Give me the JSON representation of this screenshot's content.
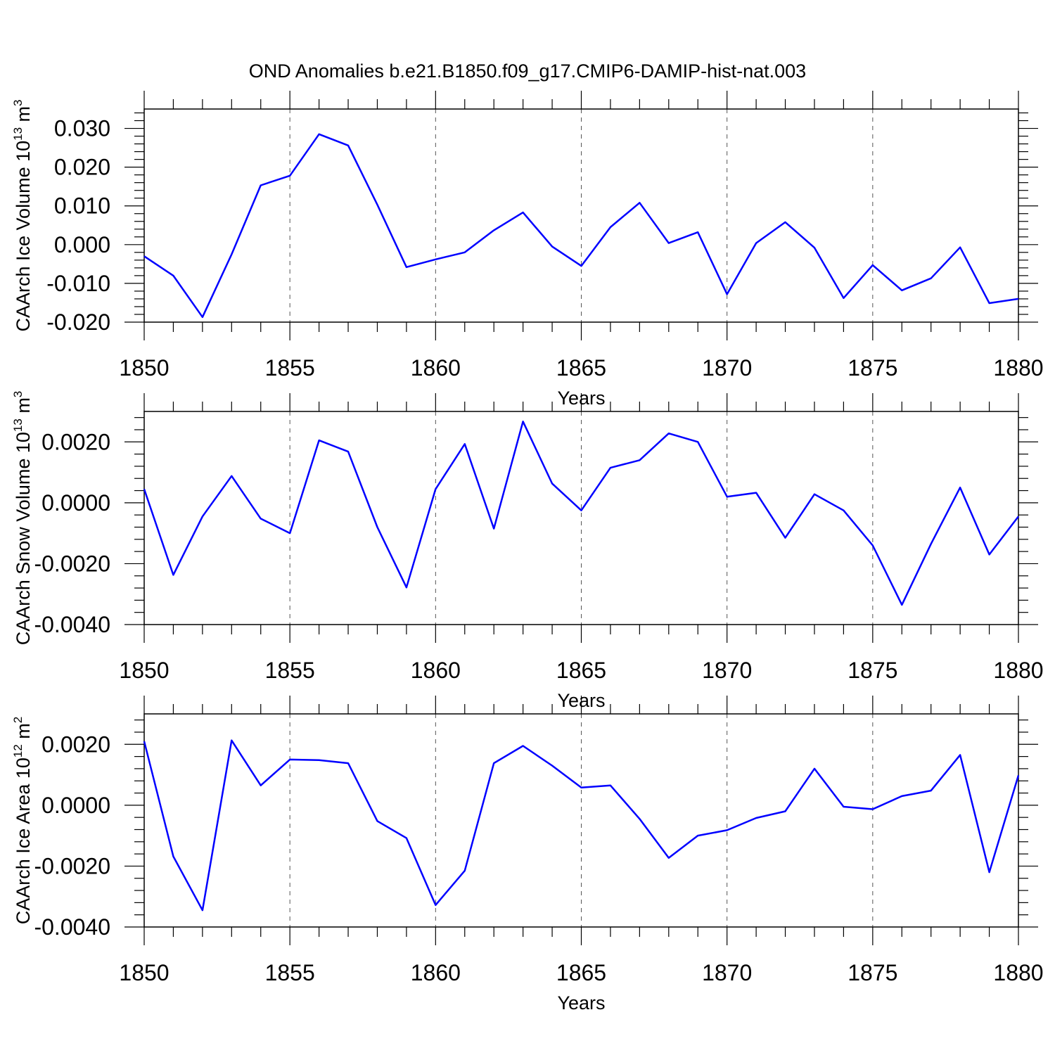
{
  "page": {
    "title": "OND Anomalies b.e21.B1850.f09_g17.CMIP6-DAMIP-hist-nat.003"
  },
  "colors": {
    "line": "#0000ff",
    "axis": "#000000",
    "grid": "#555555"
  },
  "chart_data": [
    {
      "type": "line",
      "title": "OND Anomalies b.e21.B1850.f09_g17.CMIP6-DAMIP-hist-nat.003",
      "xlabel": "Years",
      "ylabel": {
        "text": "CAArch Ice Volume 10",
        "sup": "13",
        "unit": " m",
        "unit_sup": "3"
      },
      "xlim": [
        1850,
        1880
      ],
      "ylim": [
        -0.02,
        0.035
      ],
      "x_ticks": [
        1850,
        1855,
        1860,
        1865,
        1870,
        1875,
        1880
      ],
      "x_tick_labels": [
        "1850",
        "1855",
        "1860",
        "1865",
        "1870",
        "1875",
        "1880"
      ],
      "y_ticks": [
        -0.02,
        -0.01,
        0.0,
        0.01,
        0.02,
        0.03
      ],
      "y_tick_labels": [
        "-0.020",
        "-0.010",
        "0.000",
        "0.010",
        "0.020",
        "0.030"
      ],
      "grid": "vertical dashed at major x ticks",
      "x": [
        1850,
        1851,
        1852,
        1853,
        1854,
        1855,
        1856,
        1857,
        1858,
        1859,
        1860,
        1861,
        1862,
        1863,
        1864,
        1865,
        1866,
        1867,
        1868,
        1869,
        1870,
        1871,
        1872,
        1873,
        1874,
        1875,
        1876,
        1877,
        1878,
        1879,
        1880
      ],
      "values": [
        -0.003,
        -0.008,
        -0.0187,
        -0.0025,
        0.0153,
        0.0178,
        0.0285,
        0.0256,
        0.0103,
        -0.0058,
        -0.0038,
        -0.002,
        0.0037,
        0.0083,
        -0.0005,
        -0.0055,
        0.0045,
        0.0108,
        0.0004,
        0.0032,
        -0.0128,
        0.0004,
        0.0058,
        -0.0008,
        -0.0138,
        -0.0053,
        -0.0118,
        -0.0087,
        -0.0007,
        -0.0151,
        -0.014
      ]
    },
    {
      "type": "line",
      "title": "",
      "xlabel": "Years",
      "ylabel": {
        "text": "CAArch Snow Volume 10",
        "sup": "13",
        "unit": " m",
        "unit_sup": "3"
      },
      "xlim": [
        1850,
        1880
      ],
      "ylim": [
        -0.004,
        0.003
      ],
      "x_ticks": [
        1850,
        1855,
        1860,
        1865,
        1870,
        1875,
        1880
      ],
      "x_tick_labels": [
        "1850",
        "1855",
        "1860",
        "1865",
        "1870",
        "1875",
        "1880"
      ],
      "y_ticks": [
        -0.004,
        -0.002,
        0.0,
        0.002
      ],
      "y_tick_labels": [
        "-0.0040",
        "-0.0020",
        "0.0000",
        "0.0020"
      ],
      "grid": "vertical dashed at major x ticks",
      "x": [
        1850,
        1851,
        1852,
        1853,
        1854,
        1855,
        1856,
        1857,
        1858,
        1859,
        1860,
        1861,
        1862,
        1863,
        1864,
        1865,
        1866,
        1867,
        1868,
        1869,
        1870,
        1871,
        1872,
        1873,
        1874,
        1875,
        1876,
        1877,
        1878,
        1879,
        1880
      ],
      "values": [
        0.00045,
        -0.00237,
        -0.00045,
        0.00088,
        -0.00052,
        -0.001,
        0.00205,
        0.00168,
        -0.0008,
        -0.00278,
        0.00045,
        0.00193,
        -0.00085,
        0.00267,
        0.00063,
        -0.00025,
        0.00115,
        0.0014,
        0.00228,
        0.002,
        0.0002,
        0.00033,
        -0.00115,
        0.00028,
        -0.00025,
        -0.0014,
        -0.00335,
        -0.00135,
        0.0005,
        -0.0017,
        -0.00045
      ]
    },
    {
      "type": "line",
      "title": "",
      "xlabel": "Years",
      "ylabel": {
        "text": "CAArch Ice Area 10",
        "sup": "12",
        "unit": " m",
        "unit_sup": "2"
      },
      "xlim": [
        1850,
        1880
      ],
      "ylim": [
        -0.004,
        0.003
      ],
      "x_ticks": [
        1850,
        1855,
        1860,
        1865,
        1870,
        1875,
        1880
      ],
      "x_tick_labels": [
        "1850",
        "1855",
        "1860",
        "1865",
        "1870",
        "1875",
        "1880"
      ],
      "y_ticks": [
        -0.004,
        -0.002,
        0.0,
        0.002
      ],
      "y_tick_labels": [
        "-0.0040",
        "-0.0020",
        "0.0000",
        "0.0020"
      ],
      "grid": "vertical dashed at major x ticks",
      "x": [
        1850,
        1851,
        1852,
        1853,
        1854,
        1855,
        1856,
        1857,
        1858,
        1859,
        1860,
        1861,
        1862,
        1863,
        1864,
        1865,
        1866,
        1867,
        1868,
        1869,
        1870,
        1871,
        1872,
        1873,
        1874,
        1875,
        1876,
        1877,
        1878,
        1879,
        1880
      ],
      "values": [
        0.0021,
        -0.00168,
        -0.00345,
        0.00213,
        0.00065,
        0.0015,
        0.00148,
        0.00138,
        -0.00052,
        -0.00108,
        -0.00328,
        -0.00215,
        0.00138,
        0.00195,
        0.0013,
        0.00058,
        0.00065,
        -0.00045,
        -0.00173,
        -0.001,
        -0.00082,
        -0.00042,
        -0.0002,
        0.0012,
        -5e-05,
        -0.00013,
        0.0003,
        0.00048,
        0.00165,
        -0.0022,
        0.00098
      ]
    }
  ]
}
